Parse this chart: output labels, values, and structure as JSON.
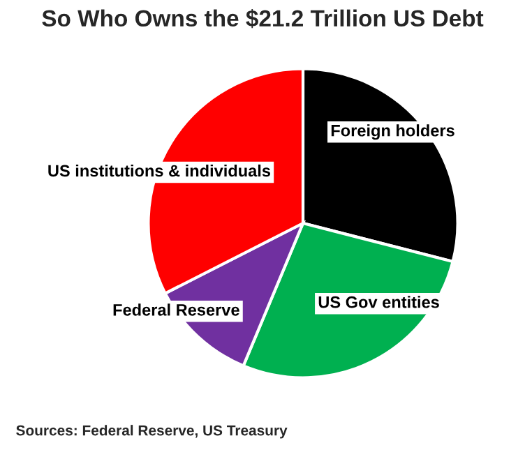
{
  "chart_data": {
    "type": "pie",
    "title": "So Who Owns the $21.2 Trillion US Debt",
    "categories": [
      "Foreign holders",
      "US Gov entities",
      "Federal Reserve",
      "US institutions & individuals"
    ],
    "values": [
      29.0,
      27.3,
      11.2,
      32.5
    ],
    "colors": [
      "#000000",
      "#00b050",
      "#7030a0",
      "#ff0000"
    ],
    "annotations": [
      "Sources: Federal Reserve, US Treasury"
    ]
  }
}
